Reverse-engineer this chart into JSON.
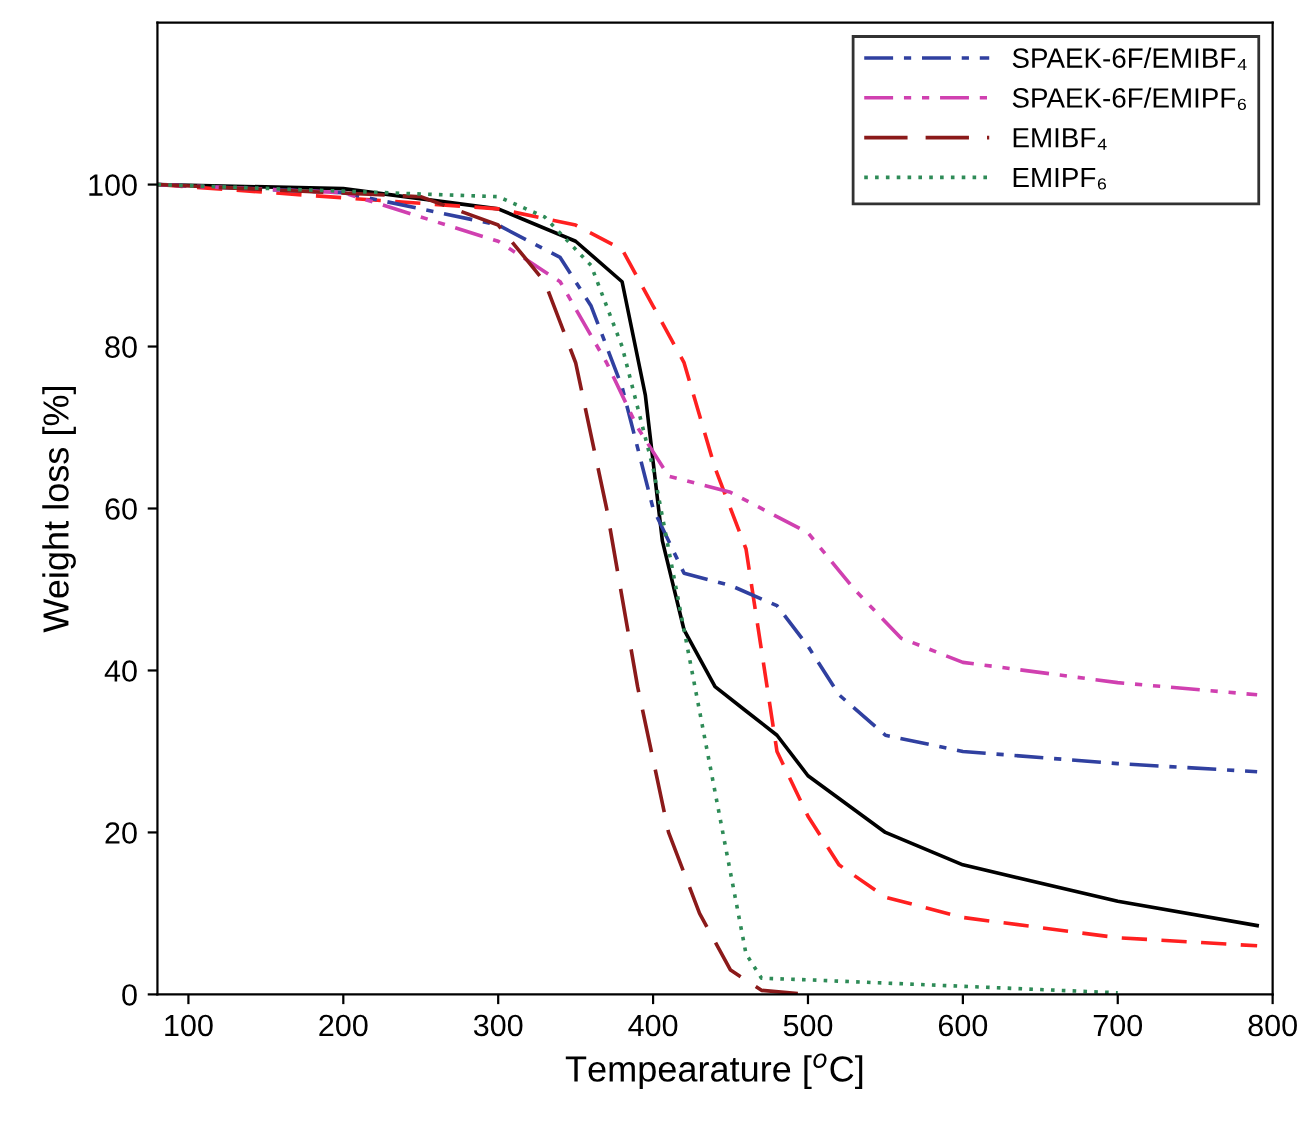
{
  "chart_data": {
    "type": "line",
    "xlabel": "Tempearature [$^{o}$C]",
    "ylabel": "Weight loss [%]",
    "xlim": [
      80,
      800
    ],
    "xticks": [
      100,
      200,
      300,
      400,
      500,
      600,
      700,
      800
    ],
    "ylim": [
      0,
      120
    ],
    "yticks": [
      0,
      20,
      40,
      60,
      80,
      100
    ],
    "legend": "top right",
    "grid": false,
    "marker": "none",
    "series": [
      {
        "color": "#000000",
        "line_style": "solid",
        "x": [
          80,
          200,
          300,
          350,
          380,
          395,
          406,
          420,
          440,
          460,
          480,
          500,
          550,
          600,
          700,
          790
        ],
        "values": [
          100,
          99.5,
          97,
          93,
          88,
          74,
          56,
          45,
          38,
          35,
          32,
          27,
          20,
          16,
          11.5,
          8.5
        ]
      },
      {
        "color": "#ff2020",
        "line_style": "dashed",
        "x": [
          80,
          300,
          350,
          380,
          400,
          420,
          440,
          460,
          480,
          500,
          520,
          550,
          600,
          700,
          790
        ],
        "values": [
          100,
          97,
          95,
          92,
          85,
          78,
          65,
          55,
          30,
          22,
          16,
          12,
          9.5,
          7,
          6
        ]
      },
      {
        "name": "SPAEK-6F/EMIBF₄",
        "color": "#3040a0",
        "line_style": "dashdot",
        "x": [
          80,
          200,
          300,
          340,
          360,
          380,
          400,
          420,
          450,
          480,
          500,
          520,
          550,
          600,
          700,
          790
        ],
        "values": [
          100,
          99,
          95,
          91,
          85,
          75,
          60,
          52,
          50.5,
          48,
          43,
          37,
          32,
          30,
          28.5,
          27.5
        ]
      },
      {
        "name": "SPAEK-6F/EMIPF₆",
        "color": "#d040b0",
        "line_style": "dashdotdot",
        "x": [
          80,
          200,
          250,
          300,
          340,
          370,
          390,
          410,
          450,
          500,
          530,
          560,
          600,
          700,
          790
        ],
        "values": [
          100,
          99,
          96,
          93,
          88,
          78,
          70,
          64,
          62,
          57,
          50,
          44,
          41,
          38.5,
          37
        ]
      },
      {
        "name": "EMIBF₄",
        "color": "#8b1a1a",
        "line_style": "longdash",
        "x": [
          80,
          250,
          300,
          330,
          350,
          370,
          390,
          410,
          430,
          450,
          470,
          500
        ],
        "values": [
          100,
          98.5,
          95,
          88,
          78,
          60,
          38,
          20,
          10,
          3,
          0.5,
          0
        ]
      },
      {
        "name": "EMIPF₆",
        "color": "#2e8b57",
        "line_style": "dotted",
        "x": [
          80,
          300,
          330,
          360,
          380,
          400,
          420,
          440,
          460,
          470,
          500,
          600,
          700
        ],
        "values": [
          100,
          98.5,
          96,
          90,
          80,
          65,
          45,
          25,
          5,
          2,
          1.8,
          1,
          0.2
        ]
      }
    ]
  }
}
